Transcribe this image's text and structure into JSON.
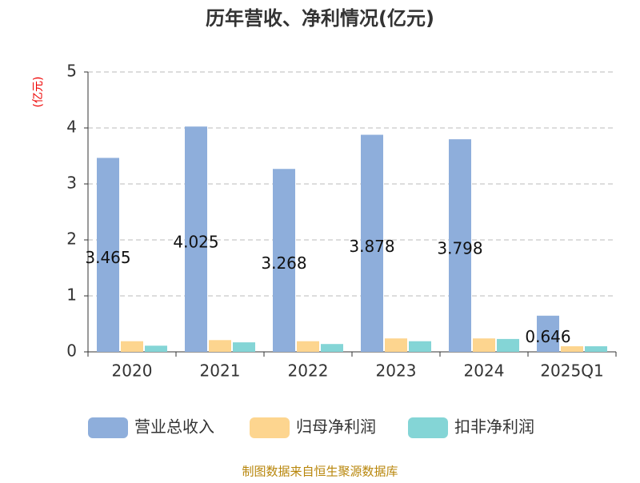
{
  "chart_data": {
    "type": "bar",
    "title": "历年营收、净利情况(亿元)",
    "y_unit": "(亿元)",
    "source": "制图数据来自恒生聚源数据库",
    "categories": [
      "2020",
      "2021",
      "2022",
      "2023",
      "2024",
      "2025Q1"
    ],
    "series": [
      {
        "name": "营业总收入",
        "color": "#8eaedb",
        "values": [
          3.465,
          4.025,
          3.268,
          3.878,
          3.798,
          0.646
        ],
        "labels": true
      },
      {
        "name": "归母净利润",
        "color": "#fdd58f",
        "values": [
          0.19,
          0.21,
          0.19,
          0.24,
          0.24,
          0.1
        ]
      },
      {
        "name": "扣非净利润",
        "color": "#84d5d6",
        "values": [
          0.11,
          0.17,
          0.14,
          0.19,
          0.23,
          0.1
        ]
      }
    ],
    "ylim": [
      0,
      5
    ],
    "yticks": [
      0,
      1,
      2,
      3,
      4,
      5
    ],
    "grid": true,
    "legend": "bottom"
  }
}
